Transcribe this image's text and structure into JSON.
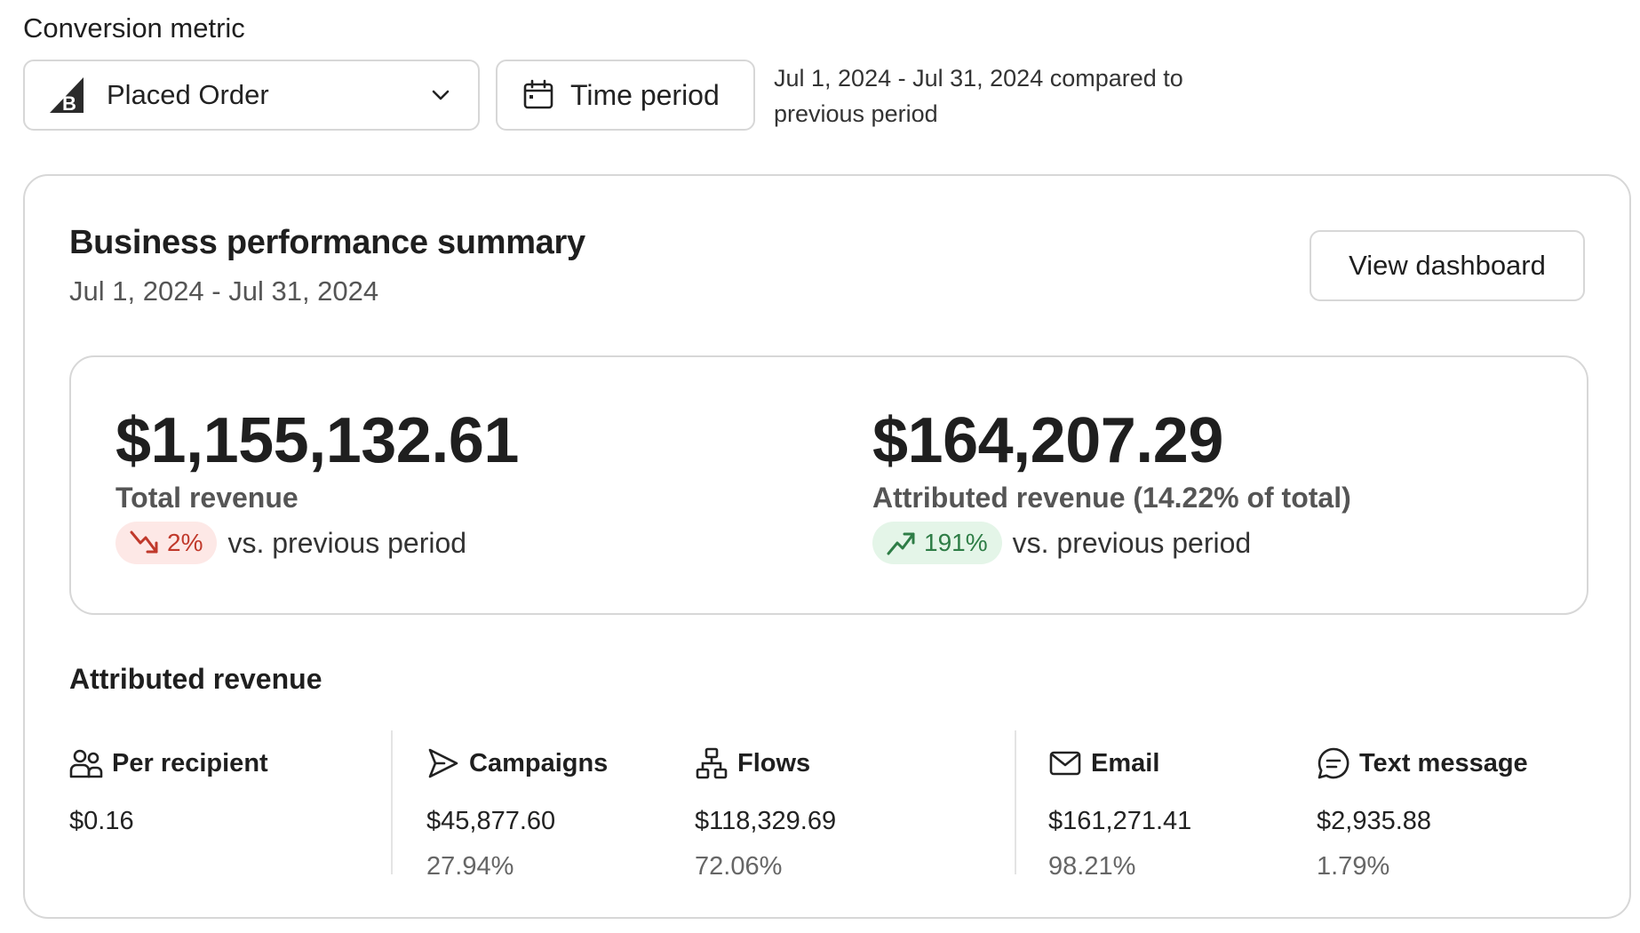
{
  "filters": {
    "metric_label": "Conversion metric",
    "metric_value": "Placed Order",
    "time_button_label": "Time period",
    "range_text": "Jul 1, 2024 - Jul 31, 2024 compared to previous period"
  },
  "summary": {
    "title": "Business performance summary",
    "range": "Jul 1, 2024 - Jul 31, 2024",
    "view_button": "View dashboard",
    "total": {
      "value": "$1,155,132.61",
      "label": "Total revenue",
      "change": "2%",
      "direction": "down",
      "vs": "vs. previous period"
    },
    "attributed": {
      "value": "$164,207.29",
      "label": "Attributed revenue (14.22% of total)",
      "change": "191%",
      "direction": "up",
      "vs": "vs. previous period"
    }
  },
  "attributed_revenue": {
    "title": "Attributed revenue",
    "metrics": [
      {
        "label": "Per recipient",
        "icon": "users-icon",
        "value": "$0.16",
        "percent": ""
      },
      {
        "label": "Campaigns",
        "icon": "send-icon",
        "value": "$45,877.60",
        "percent": "27.94%"
      },
      {
        "label": "Flows",
        "icon": "flow-icon",
        "value": "$118,329.69",
        "percent": "72.06%"
      },
      {
        "label": "Email",
        "icon": "email-icon",
        "value": "$161,271.41",
        "percent": "98.21%"
      },
      {
        "label": "Text message",
        "icon": "message-icon",
        "value": "$2,935.88",
        "percent": "1.79%"
      }
    ]
  },
  "colors": {
    "down_bg": "#fde8e6",
    "down_fg": "#c0392b",
    "up_bg": "#e4f5e8",
    "up_fg": "#2e7d46",
    "border": "#d7d7d7"
  }
}
